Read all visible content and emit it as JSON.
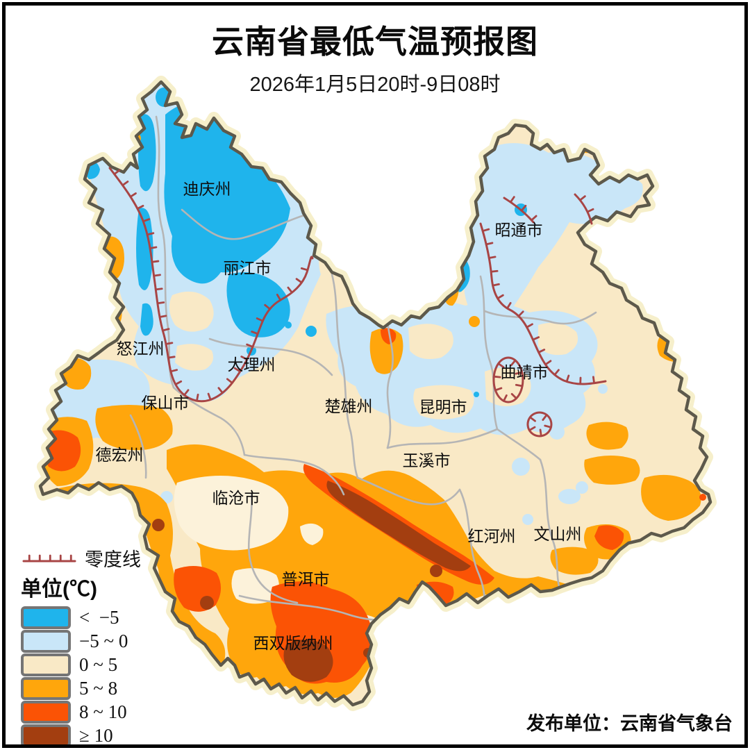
{
  "header": {
    "title": "云南省最低气温预报图",
    "subtitle": "2026年1月5日20时-9日08时"
  },
  "legend": {
    "zero_line_label": "零度线",
    "unit_label": "单位(℃)",
    "items": [
      {
        "label": "<  −5",
        "color": "#1FB4EC"
      },
      {
        "label": "−5 ~ 0",
        "color": "#C9E6F8"
      },
      {
        "label": "0 ~ 5",
        "color": "#F9E9C6"
      },
      {
        "label": "5 ~ 8",
        "color": "#FFA60C"
      },
      {
        "label": "8 ~ 10",
        "color": "#FB5305"
      },
      {
        "label": "≥ 10",
        "color": "#A33E10"
      }
    ]
  },
  "map": {
    "regions": [
      "迪庆州",
      "丽江市",
      "怒江州",
      "大理州",
      "保山市",
      "德宏州",
      "临沧市",
      "楚雄州",
      "昆明市",
      "玉溪市",
      "曲靖市",
      "昭通市",
      "红河州",
      "文山州",
      "普洱市",
      "西双版纳州"
    ],
    "zero_line_color": "#A84545",
    "province_border_color": "#5D594B",
    "district_border_color": "#B5B5B5",
    "halo_color": "#F6EFCB"
  },
  "footer": {
    "publisher": "发布单位：云南省气象台"
  }
}
